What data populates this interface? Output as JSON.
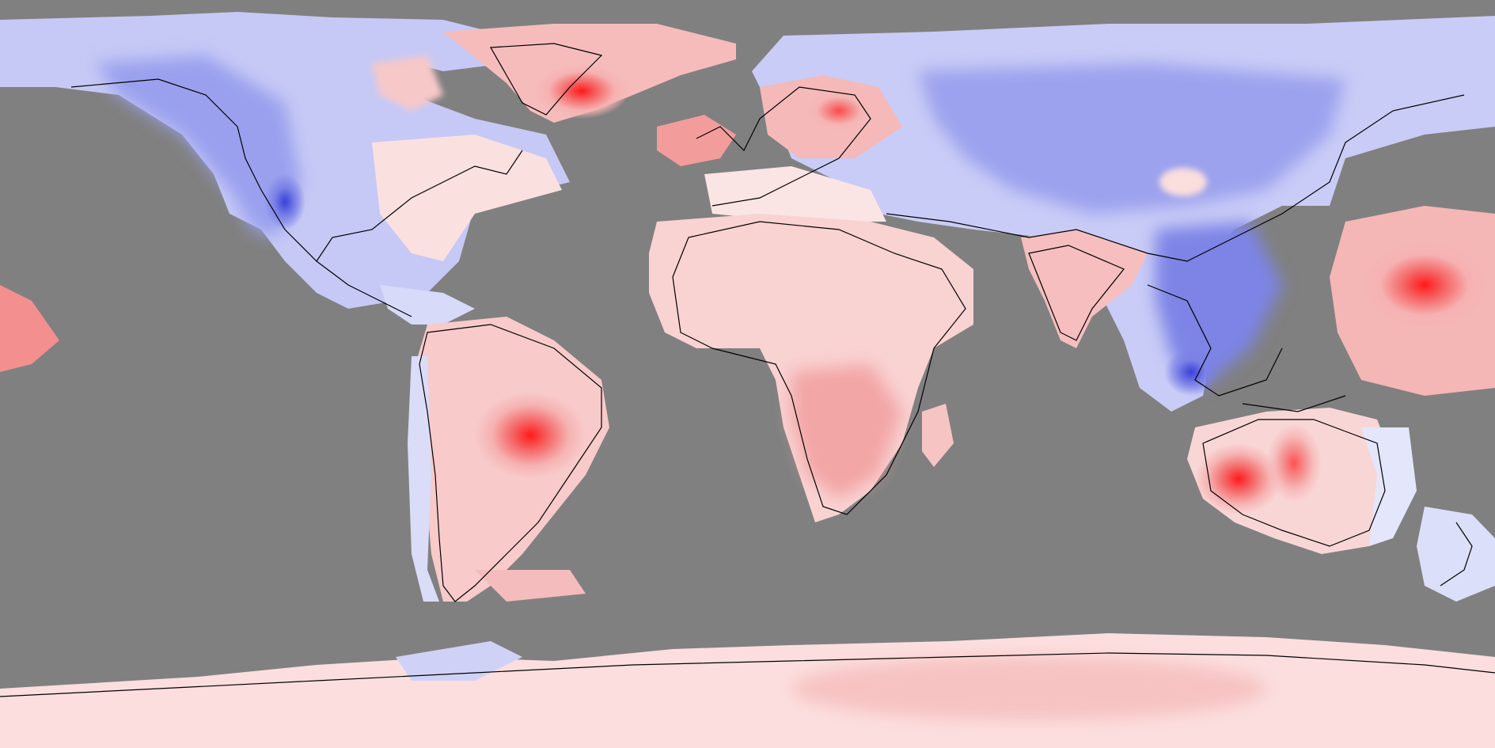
{
  "map": {
    "type": "global anomaly map (equirectangular)",
    "projection": "equirectangular",
    "background_color": "#808080",
    "coastline_color": "#000000",
    "colors": {
      "warm_max": "#ff2020",
      "warm_mid": "#f7a8a8",
      "warm_light": "#fde8e8",
      "neutral": "#ffffff",
      "cool_light": "#e2e4fb",
      "cool_mid": "#b8bcf3",
      "cool_max": "#3a40d8"
    },
    "legend": null,
    "title": null
  }
}
